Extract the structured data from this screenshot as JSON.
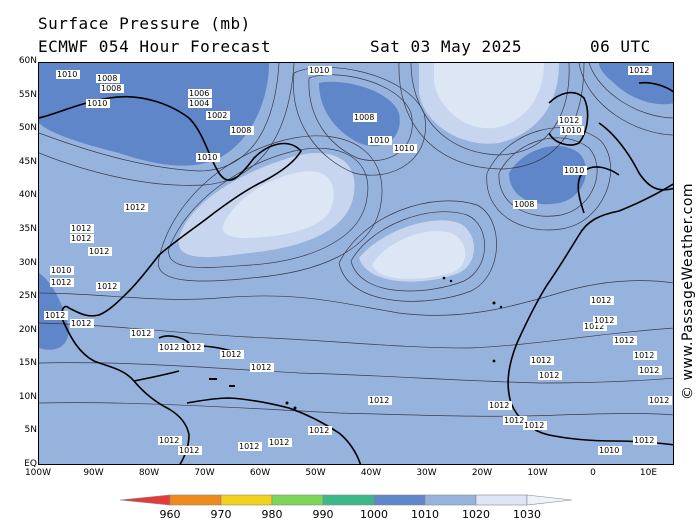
{
  "title": {
    "line1": "Surface Pressure (mb)",
    "line2": "ECMWF 054 Hour Forecast",
    "date": "Sat 03 May 2025",
    "time": "06 UTC"
  },
  "watermark": "© www.PassageWeather.com",
  "lat_labels": [
    "60N",
    "55N",
    "50N",
    "45N",
    "40N",
    "35N",
    "30N",
    "25N",
    "20N",
    "15N",
    "10N",
    "5N",
    "EQ"
  ],
  "lon_labels": [
    "100W",
    "90W",
    "80W",
    "70W",
    "60W",
    "50W",
    "40W",
    "30W",
    "20W",
    "10W",
    "0",
    "10E"
  ],
  "colorbar": {
    "labels": [
      "960",
      "970",
      "980",
      "990",
      "1000",
      "1010",
      "1020",
      "1030"
    ],
    "colors": [
      "#e63a3a",
      "#f08a1a",
      "#f2d21c",
      "#7cd65a",
      "#3cb88a",
      "#5f86c8",
      "#96b3de",
      "#dce6f4"
    ]
  },
  "isobar_labels": [
    "1010",
    "1008",
    "1008",
    "1010",
    "1006",
    "1004",
    "1002",
    "1008",
    "1010",
    "1010",
    "1008",
    "1010",
    "1010",
    "1012",
    "1010",
    "1010",
    "1008",
    "1012",
    "1012",
    "1012",
    "1012",
    "1012",
    "1010",
    "1012",
    "1012",
    "1012",
    "1012",
    "1012",
    "1012",
    "1012",
    "1012",
    "1012",
    "1012",
    "1012",
    "1012",
    "1012",
    "1012",
    "1012",
    "1012",
    "1012",
    "1012",
    "1012",
    "1012",
    "1012",
    "1012",
    "1012",
    "1010",
    "1012",
    "1012",
    "1012",
    "1012",
    "1012"
  ]
}
